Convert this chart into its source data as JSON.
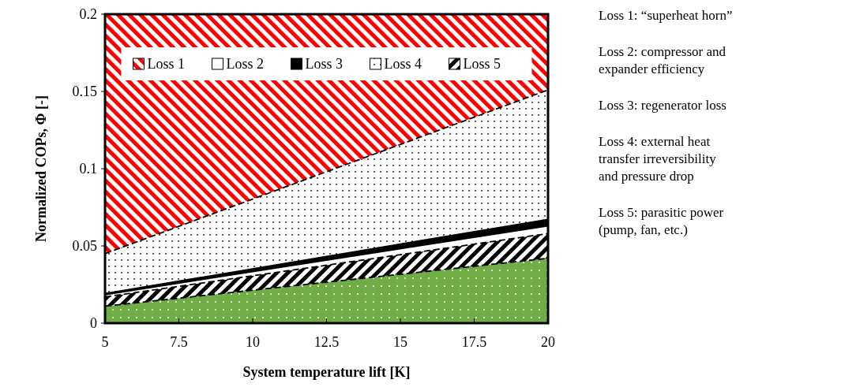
{
  "chart_data": {
    "type": "area",
    "stacked": true,
    "xlabel": "System temperature lift [K]",
    "ylabel": "Normalized COPs, Φ [-]",
    "x": [
      5,
      20
    ],
    "xlim": [
      5,
      20
    ],
    "xticks": [
      5,
      {
        "value": 7.5,
        "label": "7.5"
      },
      10,
      {
        "value": 12.5,
        "label": "12.5"
      },
      15,
      {
        "value": 17.5,
        "label": "17.5"
      },
      20
    ],
    "ylim": [
      0,
      0.2
    ],
    "yticks": [
      0,
      0.05,
      0.1,
      0.15,
      0.2
    ],
    "legend": "top",
    "series": [
      {
        "color": "#70ad47",
        "values": [
          0.011,
          0.042
        ],
        "line_style": "dashed"
      },
      {
        "name": "Loss 5",
        "color": "#000000",
        "values": [
          0.006,
          0.016
        ],
        "line_style": "dashed"
      },
      {
        "name": "Loss 2",
        "color": "#ffffff",
        "values": [
          0.0015,
          0.005
        ],
        "line_style": "solid"
      },
      {
        "name": "Loss 3",
        "color": "#000000",
        "values": [
          0.0005,
          0.004
        ],
        "line_style": "solid"
      },
      {
        "name": "Loss 4",
        "color": "#000000",
        "values": [
          0.026,
          0.084
        ],
        "line_style": "dashed"
      },
      {
        "name": "Loss 1",
        "color": "#ff0000",
        "values": [
          0.155,
          0.049
        ],
        "line_style": "solid"
      }
    ],
    "annotations": [
      "Loss 1: “superheat horn”",
      "Loss 2: compressor and expander efficiency",
      "Loss 3: regenerator loss",
      "Loss 4: external heat transfer irreversibility and pressure drop",
      "Loss 5: parasitic power (pump, fan, etc.)"
    ]
  }
}
